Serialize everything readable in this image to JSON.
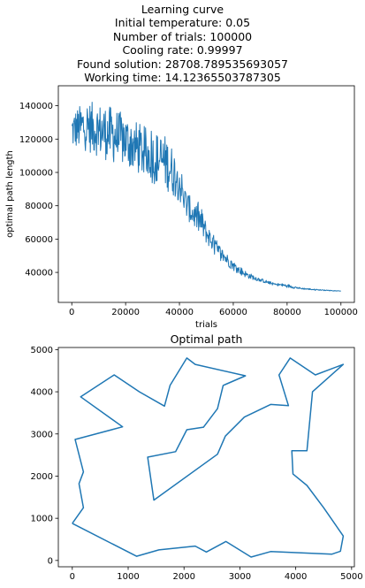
{
  "chart_data": [
    {
      "type": "line",
      "title_lines": [
        "Learning curve",
        "Initial temperature: 0.05",
        "Number of trials: 100000",
        "Cooling rate: 0.99997",
        "Found solution: 28708.789535693057",
        "Working time: 14.12365503787305"
      ],
      "xlabel": "trials",
      "ylabel": "optimal path length",
      "xlim": [
        -5000,
        105000
      ],
      "ylim": [
        22000,
        152000
      ],
      "xticks": [
        0,
        20000,
        40000,
        60000,
        80000,
        100000
      ],
      "yticks": [
        40000,
        60000,
        80000,
        100000,
        120000,
        140000
      ],
      "grid": false,
      "line_color": "#1f77b4",
      "envelope": [
        {
          "x": 0,
          "lo": 110000,
          "hi": 140000
        },
        {
          "x": 5000,
          "lo": 108000,
          "hi": 148000
        },
        {
          "x": 10000,
          "lo": 104000,
          "hi": 147000
        },
        {
          "x": 15000,
          "lo": 100000,
          "hi": 145000
        },
        {
          "x": 20000,
          "lo": 98000,
          "hi": 140000
        },
        {
          "x": 25000,
          "lo": 93000,
          "hi": 135000
        },
        {
          "x": 30000,
          "lo": 88000,
          "hi": 130000
        },
        {
          "x": 35000,
          "lo": 84000,
          "hi": 128000
        },
        {
          "x": 40000,
          "lo": 78000,
          "hi": 112000
        },
        {
          "x": 42000,
          "lo": 70000,
          "hi": 95000
        },
        {
          "x": 45000,
          "lo": 65000,
          "hi": 85000
        },
        {
          "x": 48000,
          "lo": 58000,
          "hi": 83000
        },
        {
          "x": 50000,
          "lo": 55000,
          "hi": 72000
        },
        {
          "x": 55000,
          "lo": 46000,
          "hi": 58000
        },
        {
          "x": 60000,
          "lo": 40000,
          "hi": 48000
        },
        {
          "x": 65000,
          "lo": 36000,
          "hi": 41000
        },
        {
          "x": 70000,
          "lo": 34000,
          "hi": 37000
        },
        {
          "x": 75000,
          "lo": 32000,
          "hi": 34000
        },
        {
          "x": 80000,
          "lo": 30500,
          "hi": 33500
        },
        {
          "x": 85000,
          "lo": 29800,
          "hi": 31000
        },
        {
          "x": 90000,
          "lo": 29200,
          "hi": 30200
        },
        {
          "x": 95000,
          "lo": 28900,
          "hi": 29500
        },
        {
          "x": 100000,
          "lo": 28700,
          "hi": 29000
        }
      ]
    },
    {
      "type": "line",
      "title": "Optimal path",
      "xlim": [
        -250,
        5050
      ],
      "ylim": [
        -150,
        5050
      ],
      "xticks": [
        0,
        1000,
        2000,
        3000,
        4000,
        5000
      ],
      "yticks": [
        0,
        1000,
        2000,
        3000,
        4000,
        5000
      ],
      "grid": false,
      "line_color": "#1f77b4",
      "path": [
        [
          0,
          880
        ],
        [
          1150,
          100
        ],
        [
          1550,
          250
        ],
        [
          2200,
          340
        ],
        [
          2400,
          200
        ],
        [
          2750,
          450
        ],
        [
          3200,
          80
        ],
        [
          3550,
          210
        ],
        [
          4650,
          150
        ],
        [
          4800,
          220
        ],
        [
          4850,
          580
        ],
        [
          4500,
          1250
        ],
        [
          4200,
          1780
        ],
        [
          3950,
          2050
        ],
        [
          3930,
          2600
        ],
        [
          4200,
          2600
        ],
        [
          4300,
          4000
        ],
        [
          4850,
          4650
        ],
        [
          4350,
          4400
        ],
        [
          3900,
          4800
        ],
        [
          3700,
          4400
        ],
        [
          3870,
          3670
        ],
        [
          3550,
          3700
        ],
        [
          3080,
          3400
        ],
        [
          2740,
          2950
        ],
        [
          2600,
          2520
        ],
        [
          1460,
          1430
        ],
        [
          1350,
          2450
        ],
        [
          1850,
          2580
        ],
        [
          2050,
          3100
        ],
        [
          2350,
          3160
        ],
        [
          2600,
          3600
        ],
        [
          2700,
          4150
        ],
        [
          3100,
          4380
        ],
        [
          2200,
          4650
        ],
        [
          2050,
          4800
        ],
        [
          1750,
          4150
        ],
        [
          1650,
          3660
        ],
        [
          1200,
          4000
        ],
        [
          750,
          4400
        ],
        [
          150,
          3880
        ],
        [
          900,
          3170
        ],
        [
          50,
          2870
        ],
        [
          200,
          2100
        ],
        [
          120,
          1820
        ],
        [
          200,
          1250
        ],
        [
          0,
          880
        ]
      ]
    }
  ]
}
